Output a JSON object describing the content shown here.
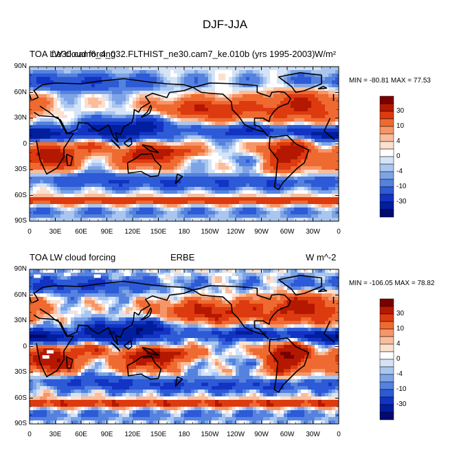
{
  "figure_title": "DJF-JJA",
  "panels": [
    {
      "left_title": "TOA LW cloud forcing",
      "center_title": "f.e30.cam6_4_032.FLTHIST_ne30.cam7_ke.010b (yrs 1995-2003)",
      "units": "W/m²",
      "stats": "MIN = -80.81 MAX =  77.53"
    },
    {
      "left_title": "TOA LW cloud forcing",
      "center_title": "ERBE",
      "units": "W m^-2",
      "stats": "MIN = -106.05 MAX =  78.82"
    }
  ],
  "lat_ticks": [
    "90N",
    "60N",
    "30N",
    "0",
    "30S",
    "60S",
    "90S"
  ],
  "lon_ticks": [
    "0",
    "30E",
    "60E",
    "90E",
    "120E",
    "150E",
    "180",
    "150W",
    "120W",
    "90W",
    "60W",
    "30W",
    "0"
  ],
  "colorbar": {
    "labels": [
      "30",
      "10",
      "4",
      "0",
      "-4",
      "-10",
      "-30"
    ],
    "colors": [
      "#7a0000",
      "#b51800",
      "#dd3a10",
      "#ef6a30",
      "#f59669",
      "#f9bd9c",
      "#fce0cf",
      "#ffffff",
      "#d4e3f7",
      "#aac6ef",
      "#7da4e6",
      "#5582de",
      "#2d5ad6",
      "#1233c4",
      "#001e9e",
      "#000a70"
    ]
  },
  "chart_data": [
    {
      "type": "heatmap",
      "title": "f.e30.cam6_4_032.FLTHIST_ne30.cam7_ke.010b (yrs 1995-2003)",
      "variable": "TOA LW cloud forcing",
      "units": "W/m²",
      "season_difference": "DJF-JJA",
      "min": -80.81,
      "max": 77.53,
      "xlim": [
        0,
        360
      ],
      "ylim": [
        -90,
        90
      ],
      "contour_levels": [
        -30,
        -10,
        -4,
        0,
        4,
        10,
        30
      ]
    },
    {
      "type": "heatmap",
      "title": "ERBE",
      "variable": "TOA LW cloud forcing",
      "units": "W m^-2",
      "season_difference": "DJF-JJA",
      "min": -106.05,
      "max": 78.82,
      "xlim": [
        0,
        360
      ],
      "ylim": [
        -90,
        90
      ],
      "contour_levels": [
        -30,
        -10,
        -4,
        0,
        4,
        10,
        30
      ]
    }
  ]
}
